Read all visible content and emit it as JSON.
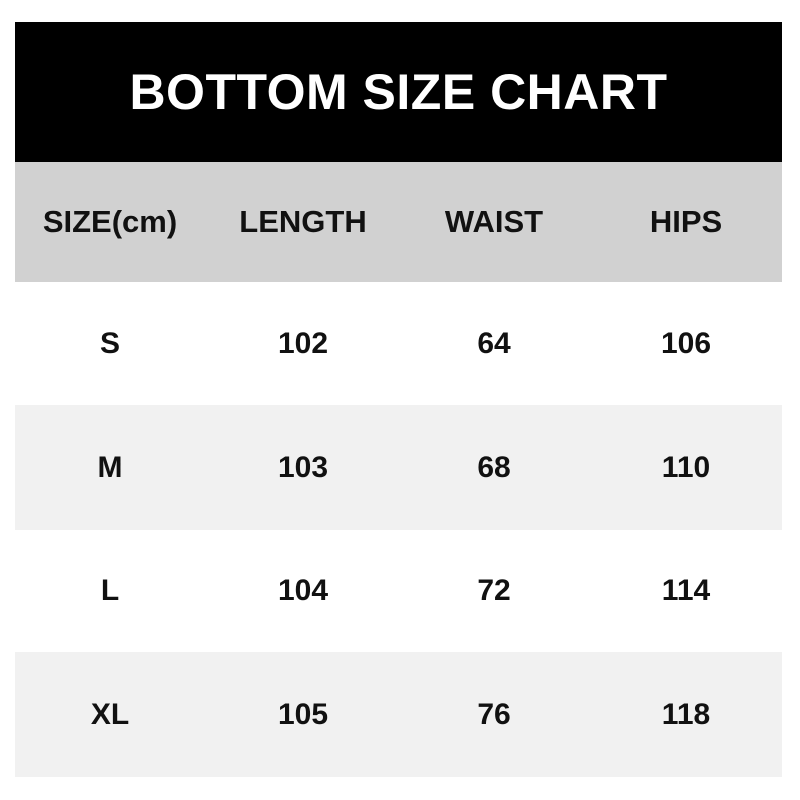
{
  "header": {
    "title": "BOTTOM SIZE CHART"
  },
  "table": {
    "columns": [
      "SIZE(cm)",
      "LENGTH",
      "WAIST",
      "HIPS"
    ],
    "rows": [
      [
        "S",
        102,
        64,
        106
      ],
      [
        "M",
        103,
        68,
        110
      ],
      [
        "L",
        104,
        72,
        114
      ],
      [
        "XL",
        105,
        76,
        118
      ]
    ]
  }
}
